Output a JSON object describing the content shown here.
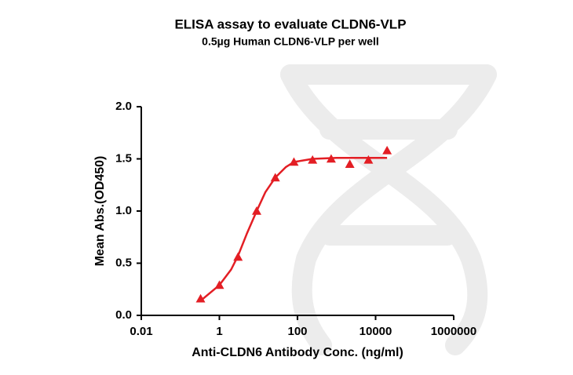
{
  "chart_data": {
    "type": "scatter",
    "title": "ELISA assay to evaluate CLDN6-VLP",
    "subtitle": "0.5µg Human CLDN6-VLP per well",
    "x_label": "Anti-CLDN6 Antibody Conc. (ng/ml)",
    "y_label": "Mean Abs.(OD450)",
    "x_scale": "log",
    "color": "#e31e24",
    "x": [
      0.33,
      1,
      3,
      9,
      27,
      81,
      243,
      729,
      2187,
      6561,
      19683
    ],
    "values": [
      0.16,
      0.29,
      0.56,
      1.0,
      1.32,
      1.47,
      1.49,
      1.5,
      1.45,
      1.49,
      1.58
    ],
    "fit": {
      "x": [
        0.33,
        1,
        2,
        3,
        5,
        9,
        15,
        27,
        50,
        81,
        243,
        1000,
        19683
      ],
      "values": [
        0.14,
        0.29,
        0.44,
        0.57,
        0.78,
        1.0,
        1.18,
        1.32,
        1.42,
        1.47,
        1.5,
        1.51,
        1.51
      ]
    },
    "xlim": [
      0.01,
      1000000
    ],
    "xticks": [
      0.01,
      1,
      100,
      10000,
      1000000
    ],
    "ylim": [
      0,
      2
    ],
    "yticks": [
      {
        "value": 0,
        "label": "0.0"
      },
      {
        "value": 0.5,
        "label": "0.5"
      },
      {
        "value": 1,
        "label": "1.0"
      },
      {
        "value": 1.5,
        "label": "1.5"
      },
      {
        "value": 2,
        "label": "2.0"
      }
    ]
  }
}
